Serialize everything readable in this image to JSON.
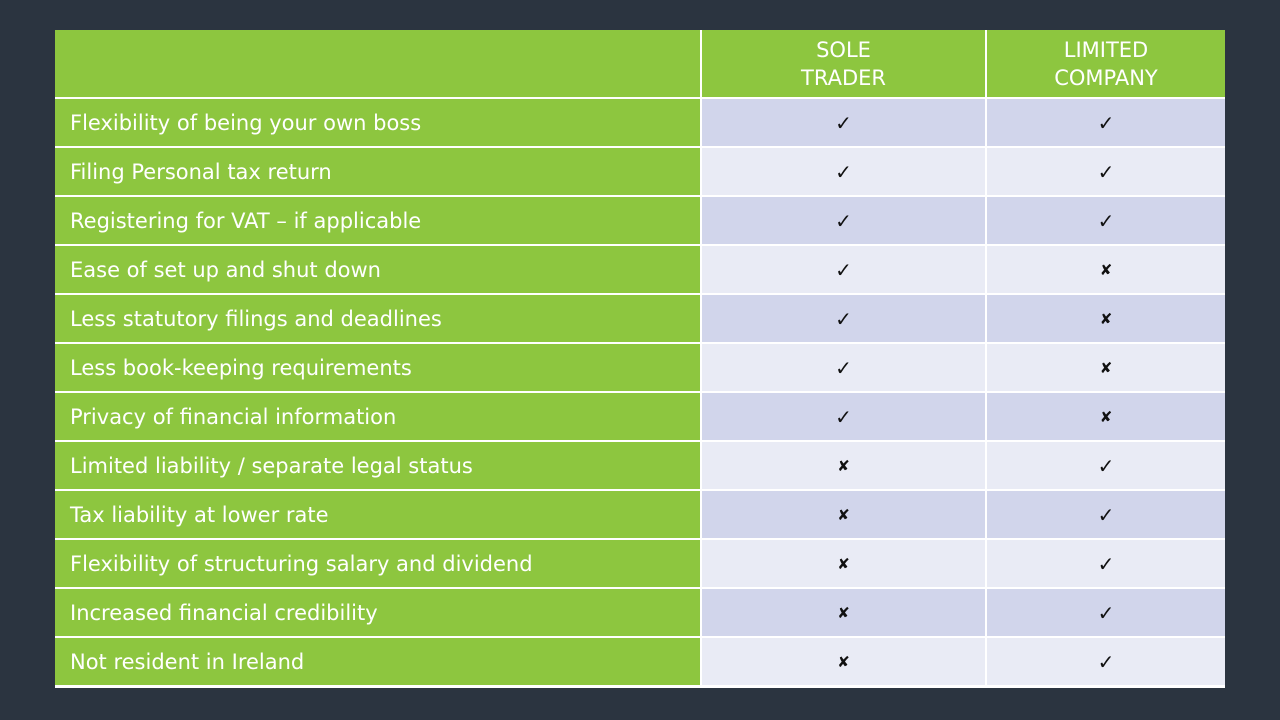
{
  "table": {
    "columns": [
      "",
      "SOLE\nTRADER",
      "LIMITED\nCOMPANY"
    ],
    "symbols": {
      "yes": "✓",
      "no": "✘"
    },
    "rows": [
      {
        "label": "Flexibility of being your own boss",
        "sole_trader": "✓",
        "limited_company": "✓"
      },
      {
        "label": "Filing Personal tax return",
        "sole_trader": "✓",
        "limited_company": "✓"
      },
      {
        "label": "Registering for VAT – if applicable",
        "sole_trader": "✓",
        "limited_company": "✓"
      },
      {
        "label": "Ease of set up and shut down",
        "sole_trader": "✓",
        "limited_company": "✘"
      },
      {
        "label": "Less statutory filings and deadlines",
        "sole_trader": "✓",
        "limited_company": "✘"
      },
      {
        "label": "Less book-keeping requirements",
        "sole_trader": "✓",
        "limited_company": "✘"
      },
      {
        "label": "Privacy of financial information",
        "sole_trader": "✓",
        "limited_company": "✘"
      },
      {
        "label": "Limited liability / separate legal status",
        "sole_trader": "✘",
        "limited_company": "✓"
      },
      {
        "label": "Tax liability at lower rate",
        "sole_trader": "✘",
        "limited_company": "✓"
      },
      {
        "label": "Flexibility of structuring salary and dividend",
        "sole_trader": "✘",
        "limited_company": "✓"
      },
      {
        "label": "Increased financial credibility",
        "sole_trader": "✘",
        "limited_company": "✓"
      },
      {
        "label": "Not resident in Ireland",
        "sole_trader": "✘",
        "limited_company": "✓"
      }
    ],
    "colors": {
      "header_green": "#8dc63f",
      "row_tint_dark": "#d1d5eb",
      "row_tint_light": "#e9ebf5",
      "background": "#2b3440"
    }
  }
}
